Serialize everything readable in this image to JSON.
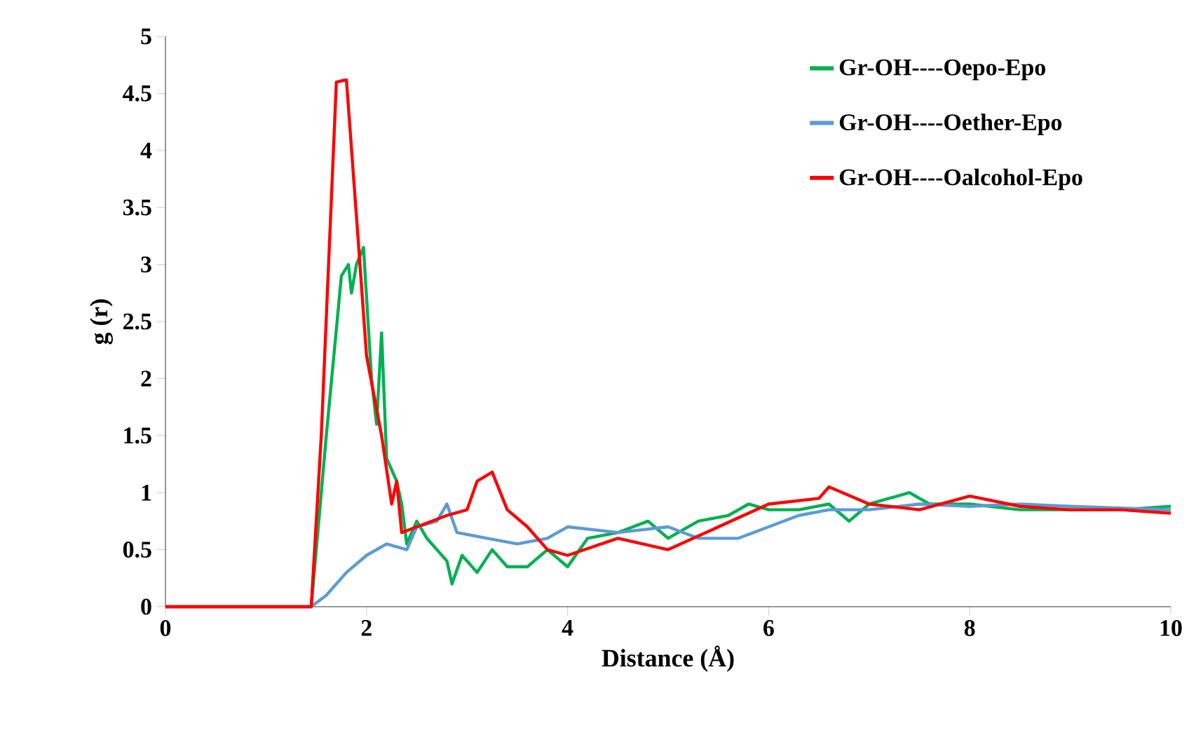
{
  "chart_data": {
    "type": "line",
    "xlabel": "Distance (Å)",
    "ylabel": "g (r)",
    "xlim": [
      0,
      10
    ],
    "xticks": [
      0,
      2,
      4,
      6,
      8,
      10
    ],
    "ylim": [
      0,
      5
    ],
    "yticks": [
      0,
      0.5,
      1,
      1.5,
      2,
      2.5,
      3,
      3.5,
      4,
      4.5,
      5
    ],
    "grid": false,
    "legend": "top right",
    "marker": "none",
    "line_style": "solid",
    "series": [
      {
        "name": "Gr-OH----Oepo-Epo",
        "color": "#00b050",
        "x": [
          0,
          1.45,
          1.6,
          1.75,
          1.82,
          1.85,
          1.9,
          1.97,
          2.05,
          2.1,
          2.15,
          2.2,
          2.3,
          2.35,
          2.4,
          2.5,
          2.6,
          2.8,
          2.85,
          2.95,
          3.1,
          3.25,
          3.4,
          3.6,
          3.8,
          4,
          4.2,
          4.5,
          4.8,
          5,
          5.3,
          5.6,
          5.8,
          6,
          6.3,
          6.6,
          6.8,
          7,
          7.4,
          7.6,
          8,
          8.5,
          9,
          9.5,
          10
        ],
        "values": [
          0,
          0,
          1.5,
          2.9,
          3.0,
          2.75,
          3.0,
          3.15,
          2.0,
          1.6,
          2.4,
          1.3,
          1.1,
          0.9,
          0.55,
          0.75,
          0.6,
          0.4,
          0.2,
          0.45,
          0.3,
          0.5,
          0.35,
          0.35,
          0.5,
          0.35,
          0.6,
          0.65,
          0.75,
          0.6,
          0.75,
          0.8,
          0.9,
          0.85,
          0.85,
          0.9,
          0.75,
          0.9,
          1.0,
          0.9,
          0.9,
          0.85,
          0.85,
          0.85,
          0.88
        ]
      },
      {
        "name": "Gr-OH----Oether-Epo",
        "color": "#5b9bd5",
        "x": [
          0,
          1.45,
          1.6,
          1.8,
          2.0,
          2.2,
          2.4,
          2.5,
          2.7,
          2.8,
          2.9,
          3.2,
          3.5,
          3.8,
          4.0,
          4.5,
          5,
          5.3,
          5.7,
          6,
          6.3,
          6.6,
          7,
          7.5,
          8,
          8.5,
          9,
          10
        ],
        "values": [
          0,
          0,
          0.1,
          0.3,
          0.45,
          0.55,
          0.5,
          0.7,
          0.75,
          0.9,
          0.65,
          0.6,
          0.55,
          0.6,
          0.7,
          0.65,
          0.7,
          0.6,
          0.6,
          0.7,
          0.8,
          0.85,
          0.85,
          0.9,
          0.88,
          0.9,
          0.88,
          0.85
        ]
      },
      {
        "name": "Gr-OH----Oalcohol-Epo",
        "color": "#ff0000",
        "x": [
          0,
          1.45,
          1.55,
          1.7,
          1.8,
          1.91,
          2.0,
          2.15,
          2.25,
          2.3,
          2.35,
          2.5,
          2.8,
          3.0,
          3.1,
          3.25,
          3.4,
          3.6,
          3.8,
          4.0,
          4.5,
          5,
          5.5,
          6,
          6.5,
          6.6,
          7,
          7.5,
          8,
          8.5,
          9,
          9.5,
          10
        ],
        "values": [
          0,
          0,
          1.5,
          4.6,
          4.62,
          3.3,
          2.2,
          1.5,
          0.9,
          1.1,
          0.65,
          0.7,
          0.8,
          0.85,
          1.1,
          1.18,
          0.85,
          0.7,
          0.5,
          0.45,
          0.6,
          0.5,
          0.7,
          0.9,
          0.95,
          1.05,
          0.9,
          0.85,
          0.97,
          0.88,
          0.85,
          0.85,
          0.82
        ]
      }
    ]
  }
}
